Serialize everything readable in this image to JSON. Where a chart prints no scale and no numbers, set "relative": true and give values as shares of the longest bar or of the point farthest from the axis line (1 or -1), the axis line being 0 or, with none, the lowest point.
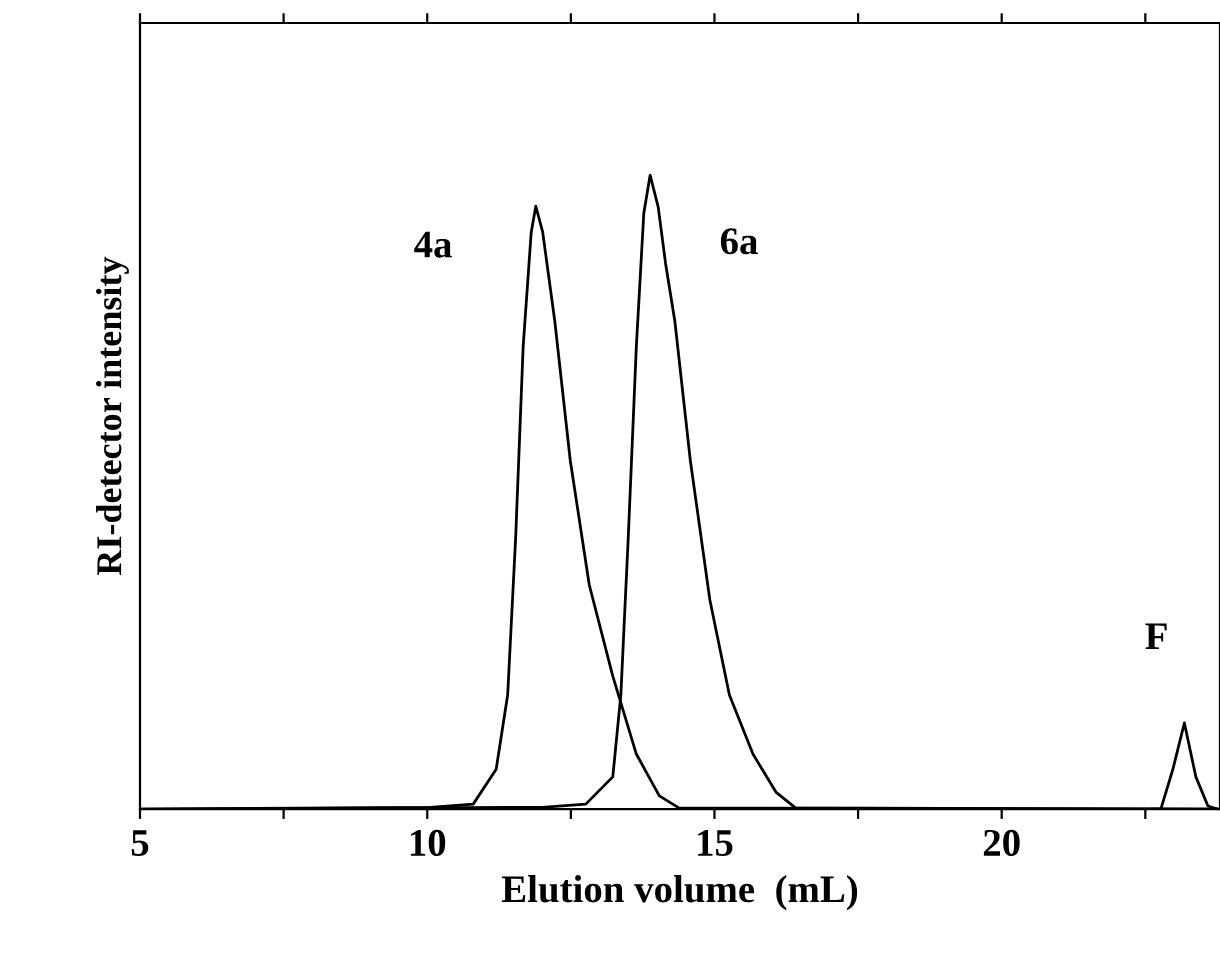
{
  "chart_data": {
    "type": "line",
    "xlabel": "Elution volume  (mL)",
    "ylabel": "RI-detector intensity",
    "relative": true,
    "xlim": [
      5,
      23.8
    ],
    "xticks": [
      5,
      {
        "value": 7.5,
        "label": null
      },
      10,
      {
        "value": 12.5,
        "label": null
      },
      15,
      {
        "value": 17.5,
        "label": null
      },
      20,
      {
        "value": 22.5,
        "label": null
      }
    ],
    "tick_labels": "x",
    "grid": false,
    "legend": false,
    "marker": "none",
    "line_style": "solid",
    "series": [
      {
        "name": "4a",
        "color": "#000000",
        "x": [
          5,
          10.05,
          10.8,
          11.2,
          11.4,
          11.54,
          11.67,
          11.81,
          11.89,
          12.01,
          12.22,
          12.49,
          12.82,
          13.23,
          13.64,
          14.04,
          14.38,
          23.8
        ],
        "values": [
          0,
          0.003,
          0.008,
          0.063,
          0.18,
          0.43,
          0.73,
          0.91,
          0.951,
          0.91,
          0.77,
          0.55,
          0.354,
          0.21,
          0.087,
          0.021,
          0.002,
          0
        ]
      },
      {
        "name": "6a",
        "color": "#000000",
        "x": [
          5,
          12.0,
          12.76,
          13.23,
          13.37,
          13.5,
          13.64,
          13.77,
          13.88,
          14.02,
          14.15,
          14.31,
          14.58,
          14.92,
          15.26,
          15.67,
          16.07,
          16.41,
          23.8
        ],
        "values": [
          0,
          0.003,
          0.008,
          0.051,
          0.18,
          0.43,
          0.73,
          0.94,
          1,
          0.95,
          0.86,
          0.77,
          0.55,
          0.33,
          0.18,
          0.087,
          0.027,
          0.002,
          0
        ]
      },
      {
        "name": "F",
        "color": "#000000",
        "x": [
          22.6,
          22.77,
          22.98,
          23.18,
          23.38,
          23.59,
          23.76
        ],
        "values": [
          0,
          0,
          0.063,
          0.136,
          0.051,
          0.005,
          0
        ]
      }
    ]
  }
}
